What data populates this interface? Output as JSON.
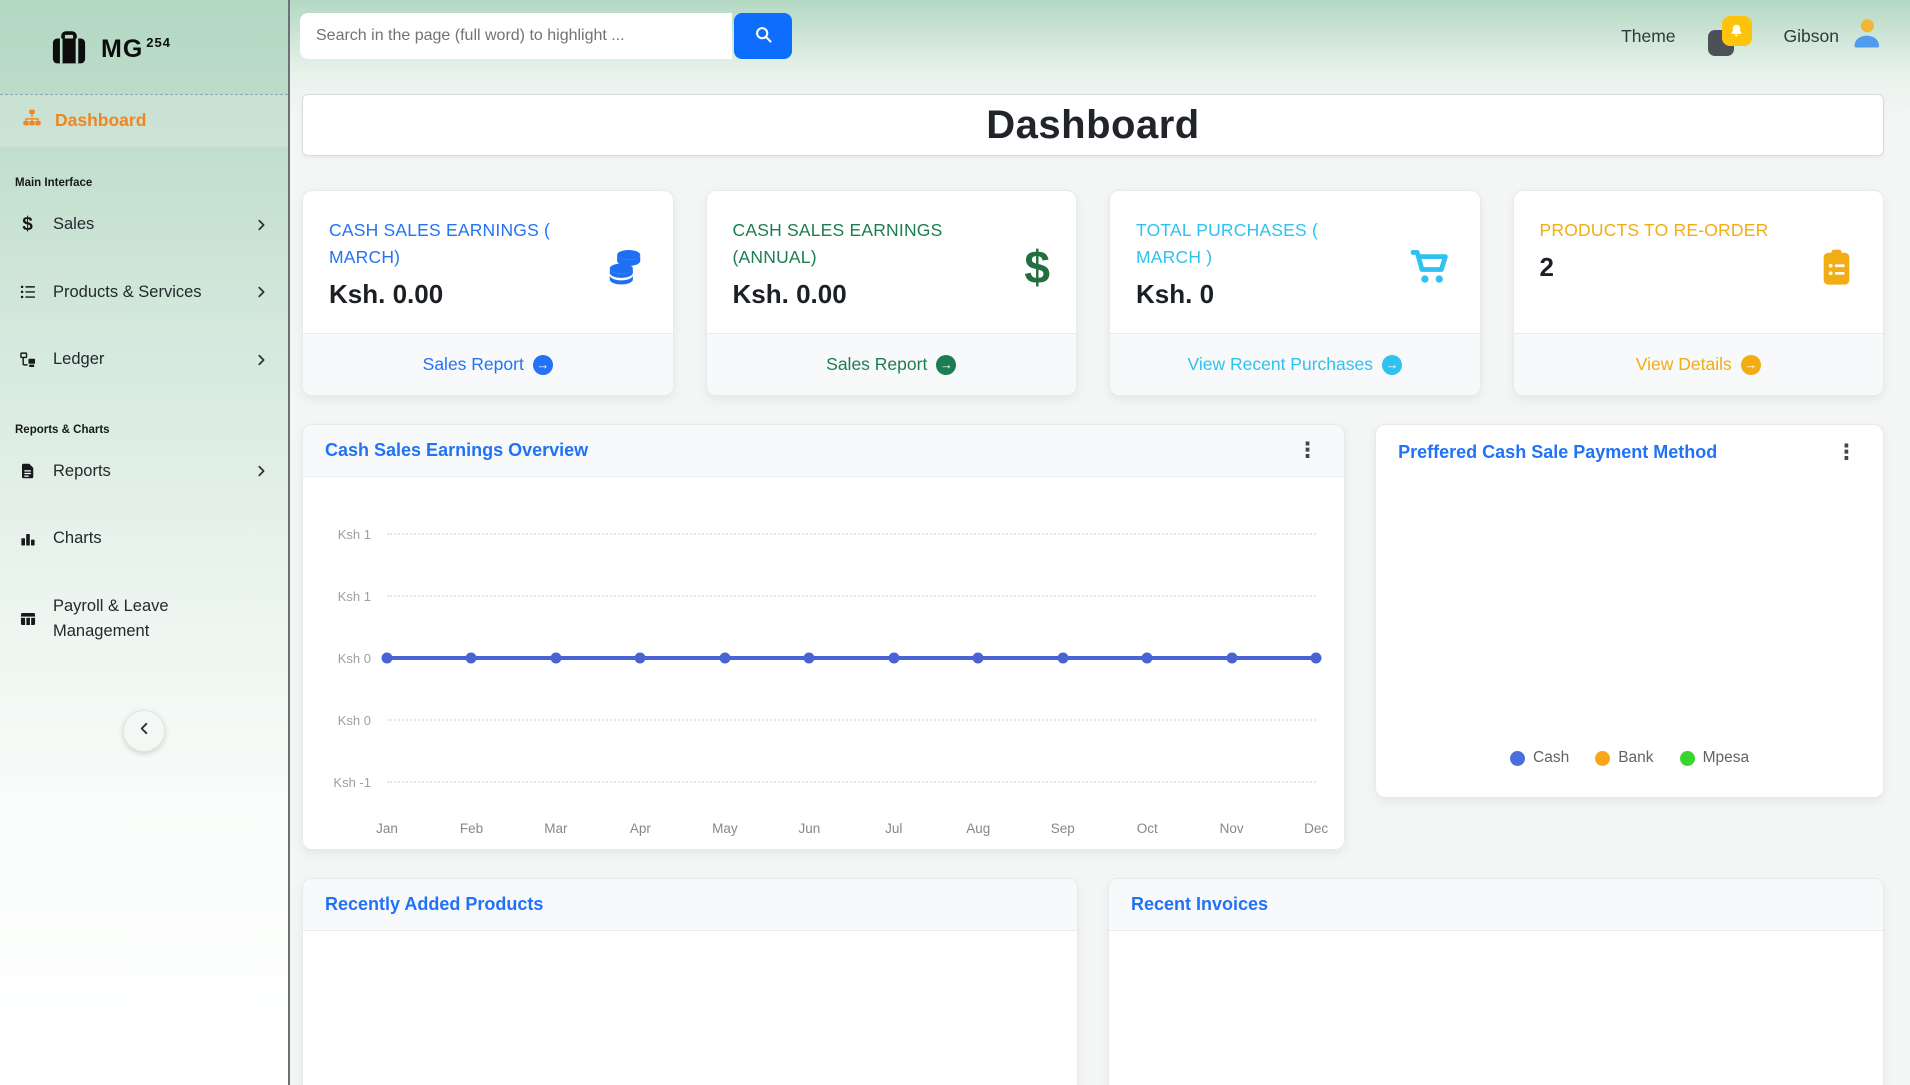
{
  "brand": {
    "name": "MG",
    "number": "254"
  },
  "topbar": {
    "search_placeholder": "Search in the page (full word) to highlight ...",
    "theme_label": "Theme",
    "username": "Gibson"
  },
  "sidebar": {
    "active": {
      "label": "Dashboard",
      "icon": "sitemap-icon"
    },
    "sections": [
      {
        "label": "Main Interface",
        "items": [
          {
            "label": "Sales",
            "icon": "dollar-icon",
            "chevron": true
          },
          {
            "label": "Products & Services",
            "icon": "list-icon",
            "chevron": true
          },
          {
            "label": "Ledger",
            "icon": "folder-tree-icon",
            "chevron": true
          }
        ]
      },
      {
        "label": "Reports & Charts",
        "items": [
          {
            "label": "Reports",
            "icon": "file-icon",
            "chevron": true
          },
          {
            "label": "Charts",
            "icon": "bar-chart-icon",
            "chevron": false
          },
          {
            "label": "Payroll & Leave Management",
            "icon": "table-icon",
            "chevron": false
          }
        ]
      }
    ]
  },
  "page": {
    "title": "Dashboard"
  },
  "stat_cards": [
    {
      "title": "CASH SALES EARNINGS ( MARCH)",
      "value": "Ksh. 0.00",
      "link_label": "Sales Report",
      "color": "#2273f5",
      "icon_color": "#1f6ff2",
      "icon": "coins-icon"
    },
    {
      "title": "CASH SALES EARNINGS (ANNUAL)",
      "value": "Ksh. 0.00",
      "link_label": "Sales Report",
      "color": "#1d7d52",
      "icon_color": "#226e3f",
      "icon": "dollar-sign-icon"
    },
    {
      "title": "TOTAL PURCHASES ( MARCH )",
      "value": "Ksh. 0",
      "link_label": "View Recent Purchases",
      "color": "#2fc1ef",
      "icon_color": "#2fc1ef",
      "icon": "cart-icon"
    },
    {
      "title": "PRODUCTS TO RE-ORDER",
      "value": "2",
      "link_label": "View Details",
      "color": "#f2ac14",
      "icon_color": "#f2ac14",
      "icon": "clipboard-icon"
    }
  ],
  "chart_data": [
    {
      "type": "line",
      "title": "Cash Sales Earnings Overview",
      "x": [
        "Jan",
        "Feb",
        "Mar",
        "Apr",
        "May",
        "Jun",
        "Jul",
        "Aug",
        "Sep",
        "Oct",
        "Nov",
        "Dec"
      ],
      "series": [
        {
          "name": "Cash Sales Earnings",
          "values": [
            0,
            0,
            0,
            0,
            0,
            0,
            0,
            0,
            0,
            0,
            0,
            0
          ]
        }
      ],
      "y_ticks": [
        "Ksh 1",
        "Ksh 1",
        "Ksh 0",
        "Ksh 0",
        "Ksh -1"
      ],
      "ylim": [
        -1,
        1
      ],
      "grid": "horizontal-dotted",
      "line_color": "#4a63d4",
      "legend_position": "none"
    },
    {
      "type": "pie",
      "title": "Preffered Cash Sale Payment Method",
      "labels": [
        "Cash",
        "Bank",
        "Mpesa"
      ],
      "values": [],
      "colors": [
        "#4a6fdc",
        "#f9a61a",
        "#38d430"
      ],
      "legend_position": "bottom-center",
      "note": "no slices rendered, chart area empty"
    }
  ],
  "bottom_cards": [
    {
      "title": "Recently Added Products"
    },
    {
      "title": "Recent Invoices"
    }
  ]
}
